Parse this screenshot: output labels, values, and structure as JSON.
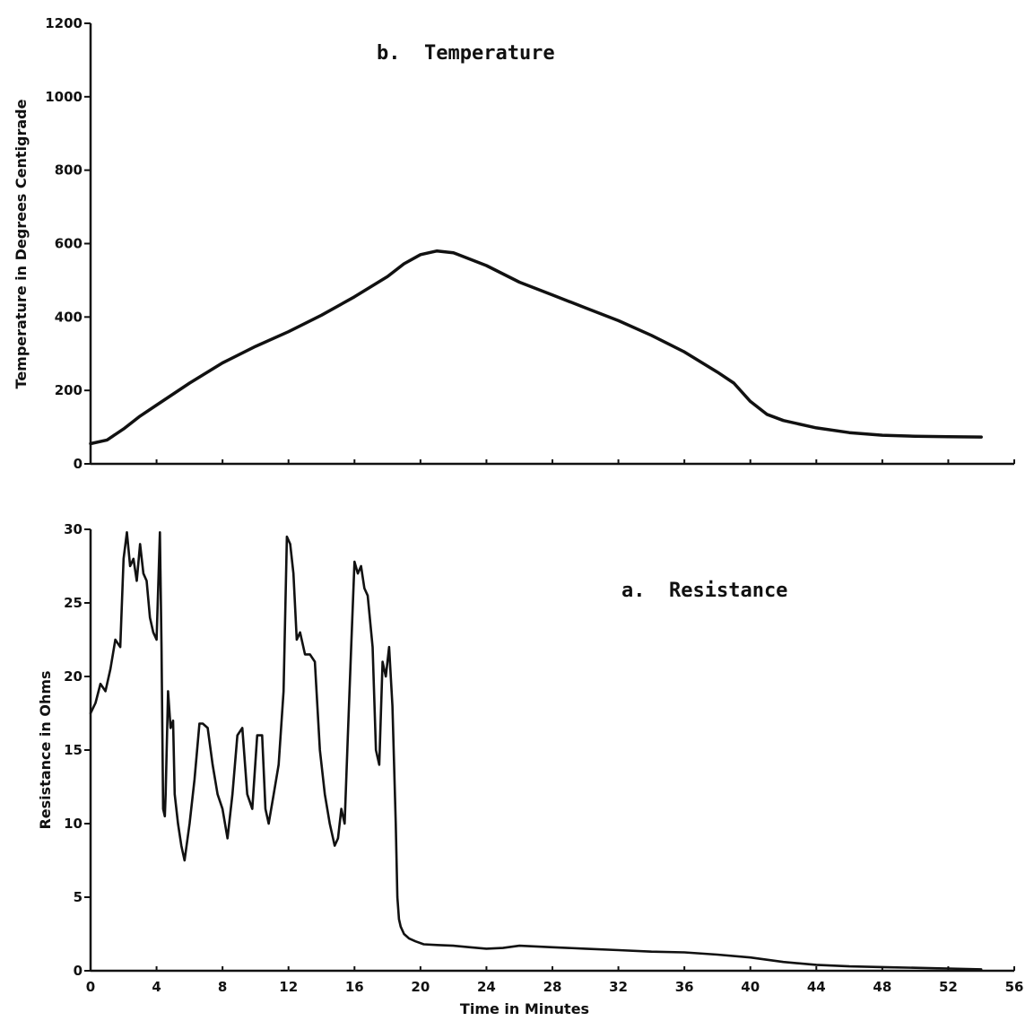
{
  "chart_data": [
    {
      "type": "line",
      "panel": "top",
      "title": "b.  Temperature",
      "xlabel": "",
      "ylabel": "Temperature in Degrees Centigrade",
      "xlim": [
        0,
        56
      ],
      "ylim": [
        0,
        1200
      ],
      "yticks": [
        "0",
        "200",
        "400",
        "600",
        "800",
        "1000",
        "1200"
      ],
      "grid": false,
      "series": [
        {
          "x": [
            0,
            1,
            2,
            3,
            4,
            6,
            8,
            10,
            12,
            14,
            16,
            18,
            19,
            20,
            21,
            22,
            24,
            26,
            28,
            30,
            32,
            34,
            36,
            38,
            39,
            40,
            41,
            42,
            44,
            46,
            48,
            50,
            52,
            54
          ],
          "y": [
            55,
            65,
            95,
            130,
            160,
            220,
            275,
            320,
            360,
            405,
            455,
            510,
            545,
            570,
            580,
            575,
            540,
            495,
            460,
            425,
            390,
            350,
            305,
            250,
            220,
            170,
            135,
            118,
            98,
            85,
            78,
            75,
            74,
            73
          ]
        }
      ]
    },
    {
      "type": "line",
      "panel": "bottom",
      "title": "a.  Resistance",
      "xlabel": "Time in Minutes",
      "ylabel": "Resistance in Ohms",
      "xlim": [
        0,
        56
      ],
      "ylim": [
        0,
        30
      ],
      "xticks": [
        "0",
        "4",
        "8",
        "12",
        "16",
        "20",
        "24",
        "28",
        "32",
        "36",
        "40",
        "44",
        "48",
        "52",
        "56"
      ],
      "yticks": [
        "0",
        "5",
        "10",
        "15",
        "20",
        "25",
        "30"
      ],
      "grid": false,
      "series": [
        {
          "x": [
            0,
            0.3,
            0.6,
            0.9,
            1.2,
            1.5,
            1.8,
            2.0,
            2.2,
            2.4,
            2.6,
            2.8,
            3.0,
            3.2,
            3.4,
            3.6,
            3.8,
            4.0,
            4.2,
            4.3,
            4.4,
            4.5,
            4.55,
            4.7,
            4.85,
            5.0,
            5.1,
            5.3,
            5.5,
            5.7,
            6.0,
            6.3,
            6.6,
            6.8,
            7.1,
            7.4,
            7.7,
            8.0,
            8.3,
            8.6,
            8.9,
            9.2,
            9.5,
            9.8,
            10.1,
            10.4,
            10.6,
            10.8,
            11.1,
            11.4,
            11.7,
            11.9,
            12.1,
            12.3,
            12.5,
            12.7,
            13.0,
            13.3,
            13.6,
            13.9,
            14.2,
            14.5,
            14.8,
            15.0,
            15.2,
            15.4,
            15.6,
            15.8,
            16.0,
            16.2,
            16.4,
            16.6,
            16.8,
            17.1,
            17.3,
            17.5,
            17.7,
            17.9,
            18.1,
            18.3,
            18.5,
            18.6,
            18.7,
            18.8,
            19.0,
            19.3,
            19.7,
            20.2,
            21,
            22,
            23,
            24,
            25,
            26,
            28,
            30,
            32,
            34,
            36,
            38,
            40,
            42,
            44,
            46,
            48,
            50,
            52,
            54
          ],
          "y": [
            17.5,
            18.2,
            19.5,
            19,
            20.5,
            22.5,
            22,
            28,
            29.8,
            27.5,
            28,
            26.5,
            29,
            27,
            26.5,
            24,
            23,
            22.5,
            29.8,
            22,
            11,
            10.5,
            12,
            19,
            16.5,
            17,
            12,
            10,
            8.5,
            7.5,
            10,
            13,
            16.8,
            16.8,
            16.5,
            14,
            12,
            11,
            9,
            12,
            16,
            16.5,
            12,
            11,
            16,
            16,
            11,
            10,
            12,
            14,
            19,
            29.5,
            29,
            27,
            22.5,
            23,
            21.5,
            21.5,
            21,
            15,
            12,
            10,
            8.5,
            9,
            11,
            10,
            16,
            22,
            27.8,
            27,
            27.5,
            26,
            25.5,
            22,
            15,
            14,
            21,
            20,
            22,
            18,
            10,
            5,
            3.5,
            3,
            2.5,
            2.2,
            2,
            1.8,
            1.75,
            1.7,
            1.6,
            1.5,
            1.55,
            1.7,
            1.6,
            1.5,
            1.4,
            1.3,
            1.25,
            1.1,
            0.9,
            0.6,
            0.4,
            0.3,
            0.25,
            0.2,
            0.15,
            0.1
          ]
        }
      ]
    }
  ]
}
